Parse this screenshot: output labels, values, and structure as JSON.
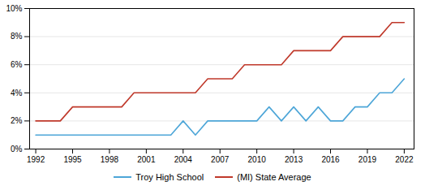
{
  "chart_data": {
    "type": "line",
    "x": [
      1992,
      1993,
      1994,
      1995,
      1996,
      1997,
      1998,
      1999,
      2000,
      2001,
      2002,
      2003,
      2004,
      2005,
      2006,
      2007,
      2008,
      2009,
      2010,
      2011,
      2012,
      2013,
      2014,
      2015,
      2016,
      2017,
      2018,
      2019,
      2020,
      2021,
      2022
    ],
    "series": [
      {
        "name": "Troy High School",
        "color": "#4da6d8",
        "values": [
          1,
          1,
          1,
          1,
          1,
          1,
          1,
          1,
          1,
          1,
          1,
          1,
          2,
          1,
          2,
          2,
          2,
          2,
          2,
          3,
          2,
          3,
          2,
          3,
          2,
          2,
          3,
          3,
          4,
          4,
          5
        ]
      },
      {
        "name": "(MI) State Average",
        "color": "#c0392b",
        "values": [
          2,
          2,
          2,
          3,
          3,
          3,
          3,
          3,
          4,
          4,
          4,
          4,
          4,
          4,
          5,
          5,
          5,
          6,
          6,
          6,
          6,
          7,
          7,
          7,
          7,
          8,
          8,
          8,
          8,
          9,
          9
        ]
      }
    ],
    "xlim": [
      1991.5,
      2022.8
    ],
    "xticks": [
      1992,
      1995,
      1998,
      2001,
      2004,
      2007,
      2010,
      2013,
      2016,
      2019,
      2022
    ],
    "ylim": [
      0,
      10
    ],
    "yticks": [
      {
        "value": 0,
        "label": "0%"
      },
      {
        "value": 2,
        "label": "2%"
      },
      {
        "value": 4,
        "label": "4%"
      },
      {
        "value": 6,
        "label": "6%"
      },
      {
        "value": 8,
        "label": "8%"
      },
      {
        "value": 10,
        "label": "10%"
      }
    ],
    "grid": "y",
    "legend": "bottom"
  }
}
